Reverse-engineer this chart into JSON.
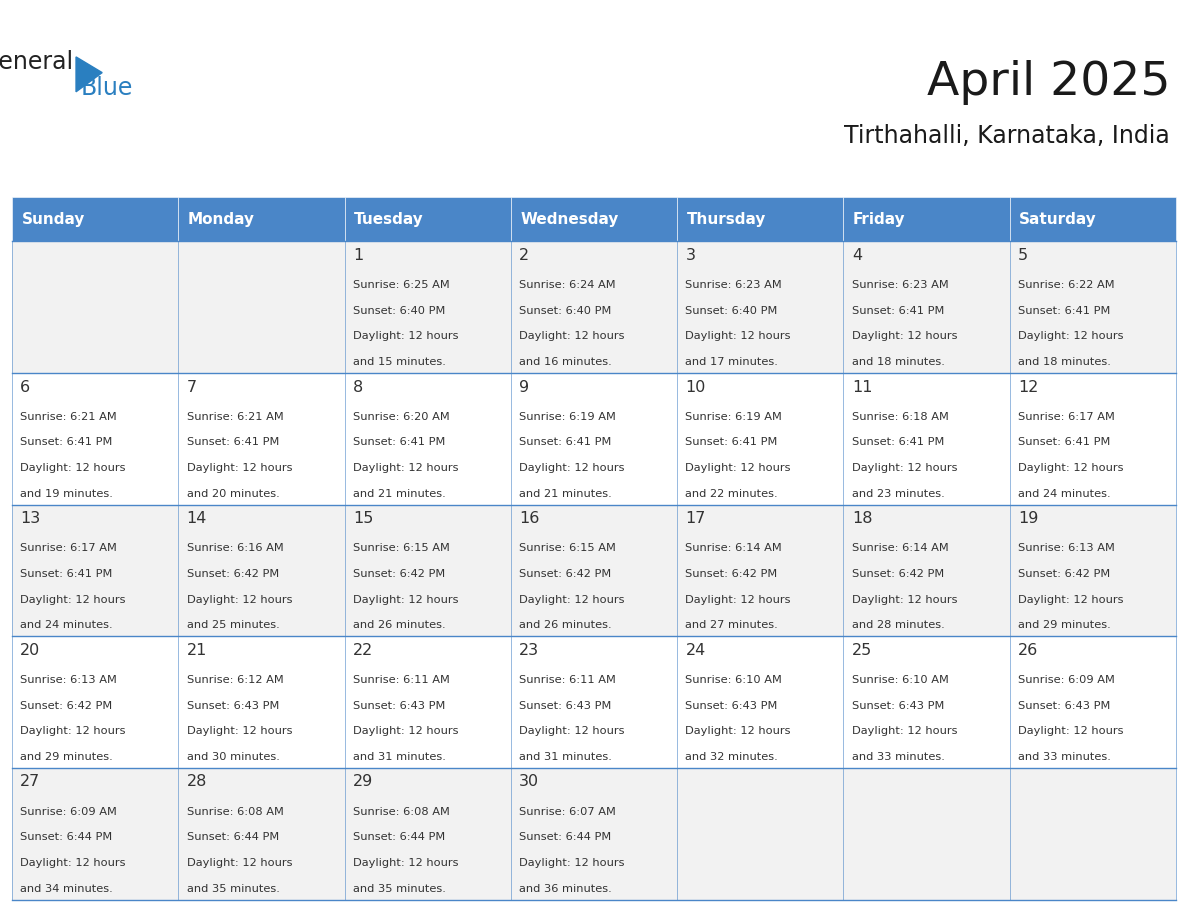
{
  "title": "April 2025",
  "subtitle": "Tirthahalli, Karnataka, India",
  "header_bg_color": "#4A86C8",
  "header_text_color": "#FFFFFF",
  "day_names": [
    "Sunday",
    "Monday",
    "Tuesday",
    "Wednesday",
    "Thursday",
    "Friday",
    "Saturday"
  ],
  "odd_row_bg": "#F2F2F2",
  "even_row_bg": "#FFFFFF",
  "cell_text_color": "#333333",
  "grid_color": "#4A86C8",
  "calendar_data": [
    [
      {
        "day": "",
        "sunrise": "",
        "sunset": "",
        "daylight": ""
      },
      {
        "day": "",
        "sunrise": "",
        "sunset": "",
        "daylight": ""
      },
      {
        "day": "1",
        "sunrise": "6:25 AM",
        "sunset": "6:40 PM",
        "daylight": "12 hours\nand 15 minutes."
      },
      {
        "day": "2",
        "sunrise": "6:24 AM",
        "sunset": "6:40 PM",
        "daylight": "12 hours\nand 16 minutes."
      },
      {
        "day": "3",
        "sunrise": "6:23 AM",
        "sunset": "6:40 PM",
        "daylight": "12 hours\nand 17 minutes."
      },
      {
        "day": "4",
        "sunrise": "6:23 AM",
        "sunset": "6:41 PM",
        "daylight": "12 hours\nand 18 minutes."
      },
      {
        "day": "5",
        "sunrise": "6:22 AM",
        "sunset": "6:41 PM",
        "daylight": "12 hours\nand 18 minutes."
      }
    ],
    [
      {
        "day": "6",
        "sunrise": "6:21 AM",
        "sunset": "6:41 PM",
        "daylight": "12 hours\nand 19 minutes."
      },
      {
        "day": "7",
        "sunrise": "6:21 AM",
        "sunset": "6:41 PM",
        "daylight": "12 hours\nand 20 minutes."
      },
      {
        "day": "8",
        "sunrise": "6:20 AM",
        "sunset": "6:41 PM",
        "daylight": "12 hours\nand 21 minutes."
      },
      {
        "day": "9",
        "sunrise": "6:19 AM",
        "sunset": "6:41 PM",
        "daylight": "12 hours\nand 21 minutes."
      },
      {
        "day": "10",
        "sunrise": "6:19 AM",
        "sunset": "6:41 PM",
        "daylight": "12 hours\nand 22 minutes."
      },
      {
        "day": "11",
        "sunrise": "6:18 AM",
        "sunset": "6:41 PM",
        "daylight": "12 hours\nand 23 minutes."
      },
      {
        "day": "12",
        "sunrise": "6:17 AM",
        "sunset": "6:41 PM",
        "daylight": "12 hours\nand 24 minutes."
      }
    ],
    [
      {
        "day": "13",
        "sunrise": "6:17 AM",
        "sunset": "6:41 PM",
        "daylight": "12 hours\nand 24 minutes."
      },
      {
        "day": "14",
        "sunrise": "6:16 AM",
        "sunset": "6:42 PM",
        "daylight": "12 hours\nand 25 minutes."
      },
      {
        "day": "15",
        "sunrise": "6:15 AM",
        "sunset": "6:42 PM",
        "daylight": "12 hours\nand 26 minutes."
      },
      {
        "day": "16",
        "sunrise": "6:15 AM",
        "sunset": "6:42 PM",
        "daylight": "12 hours\nand 26 minutes."
      },
      {
        "day": "17",
        "sunrise": "6:14 AM",
        "sunset": "6:42 PM",
        "daylight": "12 hours\nand 27 minutes."
      },
      {
        "day": "18",
        "sunrise": "6:14 AM",
        "sunset": "6:42 PM",
        "daylight": "12 hours\nand 28 minutes."
      },
      {
        "day": "19",
        "sunrise": "6:13 AM",
        "sunset": "6:42 PM",
        "daylight": "12 hours\nand 29 minutes."
      }
    ],
    [
      {
        "day": "20",
        "sunrise": "6:13 AM",
        "sunset": "6:42 PM",
        "daylight": "12 hours\nand 29 minutes."
      },
      {
        "day": "21",
        "sunrise": "6:12 AM",
        "sunset": "6:43 PM",
        "daylight": "12 hours\nand 30 minutes."
      },
      {
        "day": "22",
        "sunrise": "6:11 AM",
        "sunset": "6:43 PM",
        "daylight": "12 hours\nand 31 minutes."
      },
      {
        "day": "23",
        "sunrise": "6:11 AM",
        "sunset": "6:43 PM",
        "daylight": "12 hours\nand 31 minutes."
      },
      {
        "day": "24",
        "sunrise": "6:10 AM",
        "sunset": "6:43 PM",
        "daylight": "12 hours\nand 32 minutes."
      },
      {
        "day": "25",
        "sunrise": "6:10 AM",
        "sunset": "6:43 PM",
        "daylight": "12 hours\nand 33 minutes."
      },
      {
        "day": "26",
        "sunrise": "6:09 AM",
        "sunset": "6:43 PM",
        "daylight": "12 hours\nand 33 minutes."
      }
    ],
    [
      {
        "day": "27",
        "sunrise": "6:09 AM",
        "sunset": "6:44 PM",
        "daylight": "12 hours\nand 34 minutes."
      },
      {
        "day": "28",
        "sunrise": "6:08 AM",
        "sunset": "6:44 PM",
        "daylight": "12 hours\nand 35 minutes."
      },
      {
        "day": "29",
        "sunrise": "6:08 AM",
        "sunset": "6:44 PM",
        "daylight": "12 hours\nand 35 minutes."
      },
      {
        "day": "30",
        "sunrise": "6:07 AM",
        "sunset": "6:44 PM",
        "daylight": "12 hours\nand 36 minutes."
      },
      {
        "day": "",
        "sunrise": "",
        "sunset": "",
        "daylight": ""
      },
      {
        "day": "",
        "sunrise": "",
        "sunset": "",
        "daylight": ""
      },
      {
        "day": "",
        "sunrise": "",
        "sunset": "",
        "daylight": ""
      }
    ]
  ],
  "logo_color_general": "#222222",
  "logo_color_blue": "#2A7FC0"
}
